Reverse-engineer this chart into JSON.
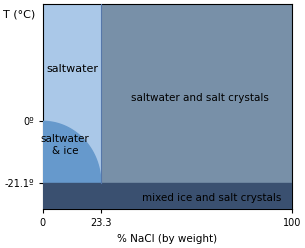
{
  "xlim": [
    0,
    100
  ],
  "ylim": [
    -30,
    40
  ],
  "y_zero": 0,
  "y_eutectic": -21.1,
  "x_eutectic": 23.3,
  "color_saltwater": "#aac8e8",
  "color_saltwater_ice": "#6699cc",
  "color_saltwater_crystals": "#7890a8",
  "color_mixed_ice": "#3a5070",
  "color_background": "#ffffff",
  "label_saltwater": "saltwater",
  "label_saltwater_ice": "saltwater\n& ice",
  "label_sw_crystals": "saltwater and salt crystals",
  "label_mixed_ice": "mixed ice and salt crystals",
  "xlabel": "% NaCl (by weight)",
  "topleft_label": "T (°C)",
  "xticks": [
    0,
    23.3,
    100
  ],
  "ytick_zero_label": "0º",
  "ytick_eutectic_label": "-21.1º"
}
